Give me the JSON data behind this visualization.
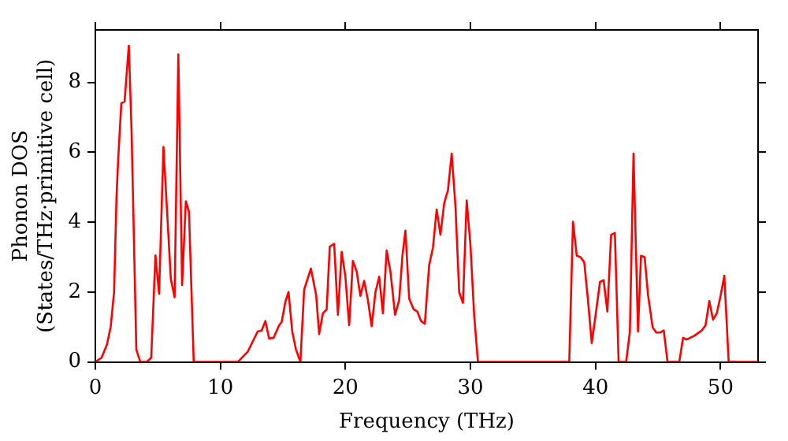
{
  "chart_data": {
    "type": "line",
    "xlabel": "Frequency (THz)",
    "ylabel": "Phonon DOS\n(States/THz·primitive cell)",
    "xlim": [
      0,
      53
    ],
    "ylim": [
      0,
      9.5
    ],
    "xticks": [
      0,
      10,
      20,
      30,
      40,
      50
    ],
    "yticks": [
      0,
      2,
      4,
      6,
      8
    ],
    "grid": false,
    "legend": false,
    "marker": "none",
    "line_style": "solid",
    "series": [
      {
        "color": "#ff0000",
        "x": [
          0,
          0.5,
          0.93,
          1.23,
          1.5,
          1.7,
          1.83,
          2.08,
          2.34,
          2.68,
          2.9,
          3.28,
          3.6,
          4.1,
          4.47,
          4.81,
          5.1,
          5.45,
          5.74,
          6.04,
          6.34,
          6.64,
          6.94,
          7.24,
          7.49,
          7.87,
          11.4,
          12.2,
          12.98,
          13.3,
          13.6,
          13.9,
          14.26,
          14.7,
          14.9,
          15.2,
          15.45,
          15.75,
          16.05,
          16.4,
          16.7,
          17.24,
          17.66,
          17.9,
          18.2,
          18.5,
          18.75,
          19.1,
          19.4,
          19.7,
          20.0,
          20.3,
          20.6,
          20.9,
          21.2,
          21.5,
          21.8,
          22.1,
          22.4,
          22.7,
          23.0,
          23.3,
          23.6,
          23.97,
          24.3,
          24.56,
          24.8,
          25.1,
          25.45,
          25.75,
          26.05,
          26.35,
          26.7,
          27.0,
          27.3,
          27.6,
          27.9,
          28.2,
          28.5,
          28.8,
          29.1,
          29.4,
          29.7,
          30.0,
          30.3,
          30.6,
          37.9,
          38.2,
          38.5,
          38.8,
          39.1,
          39.4,
          39.7,
          40.0,
          40.36,
          40.65,
          40.95,
          41.25,
          41.55,
          41.85,
          42.45,
          42.75,
          43.04,
          43.4,
          43.64,
          43.93,
          44.2,
          44.57,
          44.86,
          45.16,
          45.46,
          45.76,
          46.7,
          47.0,
          47.3,
          47.9,
          48.5,
          48.8,
          49.1,
          49.4,
          49.7,
          50.0,
          50.3,
          50.65,
          53
        ],
        "values": [
          0,
          0.12,
          0.5,
          1.0,
          2.0,
          4.76,
          5.8,
          7.4,
          7.45,
          9.05,
          6.6,
          0.35,
          0,
          0,
          0.12,
          3.05,
          1.95,
          6.15,
          4.3,
          2.37,
          1.85,
          8.8,
          2.2,
          4.6,
          4.3,
          0,
          0,
          0.3,
          0.87,
          0.9,
          1.17,
          0.67,
          0.69,
          1.05,
          1.14,
          1.72,
          2.0,
          0.87,
          0.35,
          0,
          2.07,
          2.67,
          1.92,
          0.8,
          1.39,
          1.5,
          3.3,
          3.38,
          1.35,
          3.15,
          2.44,
          1.05,
          2.89,
          2.59,
          1.89,
          2.32,
          1.77,
          1.02,
          1.99,
          2.44,
          1.39,
          3.19,
          2.59,
          1.35,
          1.77,
          3.04,
          3.76,
          1.81,
          1.51,
          1.44,
          1.17,
          1.09,
          2.77,
          3.27,
          4.36,
          3.64,
          4.54,
          4.91,
          5.96,
          4.46,
          1.99,
          1.69,
          4.62,
          3.34,
          1.32,
          0,
          0,
          4.01,
          3.04,
          3.0,
          2.85,
          1.77,
          0.54,
          1.32,
          2.29,
          2.34,
          1.44,
          3.64,
          3.69,
          0,
          0,
          0.87,
          5.96,
          0.87,
          3.04,
          3.0,
          1.92,
          0.99,
          0.84,
          0.84,
          0.9,
          0,
          0,
          0.69,
          0.64,
          0.75,
          0.9,
          1.05,
          1.74,
          1.21,
          1.39,
          1.89,
          2.47,
          0,
          0
        ]
      }
    ]
  }
}
